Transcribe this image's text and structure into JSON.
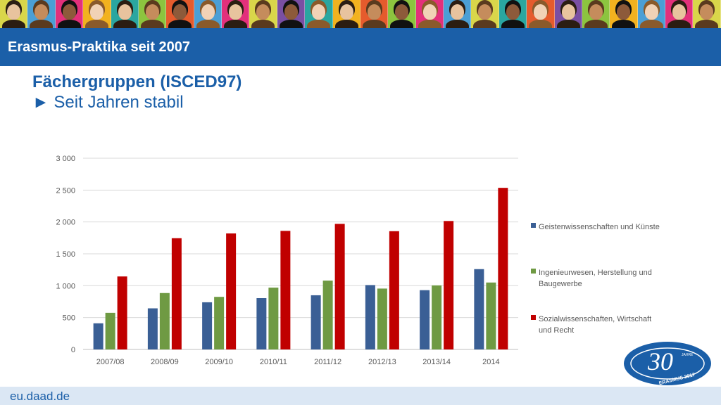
{
  "header": {
    "title": "Erasmus-Praktika seit 2007"
  },
  "headline": {
    "line1": "Fächergruppen (ISCED97)",
    "line2": "► Seit Jahren stabil"
  },
  "footer": {
    "url": "eu.daad.de"
  },
  "logo": {
    "number": "30",
    "small_text": "JAHRE",
    "ribbon_text": "ERASMUS 2017",
    "color": "#1b5fa8"
  },
  "photo_strip": {
    "colors": [
      "#d9d64a",
      "#4b9fd5",
      "#e3307b",
      "#f2b21f",
      "#2aa6a0",
      "#8cc43f",
      "#e55b2d",
      "#4b9fd5",
      "#e3307b",
      "#d9d64a",
      "#7a4fa3",
      "#2aa6a0",
      "#f2b21f",
      "#e55b2d",
      "#8cc43f",
      "#e3307b",
      "#4b9fd5",
      "#d9d64a",
      "#2aa6a0",
      "#e55b2d",
      "#7a4fa3",
      "#8cc43f",
      "#f2b21f",
      "#4b9fd5",
      "#e3307b",
      "#d9d64a"
    ]
  },
  "chart_data": {
    "type": "bar",
    "categories": [
      "2007/08",
      "2008/09",
      "2009/10",
      "2010/11",
      "2011/12",
      "2012/13",
      "2013/14",
      "2014"
    ],
    "series": [
      {
        "name": "Geistenwissenschaften und Künste",
        "color": "#3a5f95",
        "values": [
          410,
          645,
          740,
          805,
          850,
          1010,
          930,
          1260
        ]
      },
      {
        "name": "Ingenieurwesen, Herstellung und Baugewerbe",
        "color": "#6f9a43",
        "values": [
          575,
          885,
          825,
          970,
          1080,
          955,
          1005,
          1050
        ]
      },
      {
        "name": "Sozialwissenschaften, Wirtschaft und Recht",
        "color": "#c00000",
        "values": [
          1145,
          1745,
          1820,
          1860,
          1970,
          1855,
          2015,
          2535
        ]
      }
    ],
    "yticks": [
      "0",
      "500",
      "1 000",
      "1 500",
      "2 000",
      "2 500",
      "3 000"
    ],
    "ylim": [
      0,
      3000
    ],
    "grid": true,
    "legend_position": "right",
    "legend_lines": [
      [
        "Geistenwissenschaften und Künste"
      ],
      [
        "Ingenieurwesen, Herstellung und",
        "Baugewerbe"
      ],
      [
        "Sozialwissenschaften, Wirtschaft",
        "und Recht"
      ]
    ]
  }
}
